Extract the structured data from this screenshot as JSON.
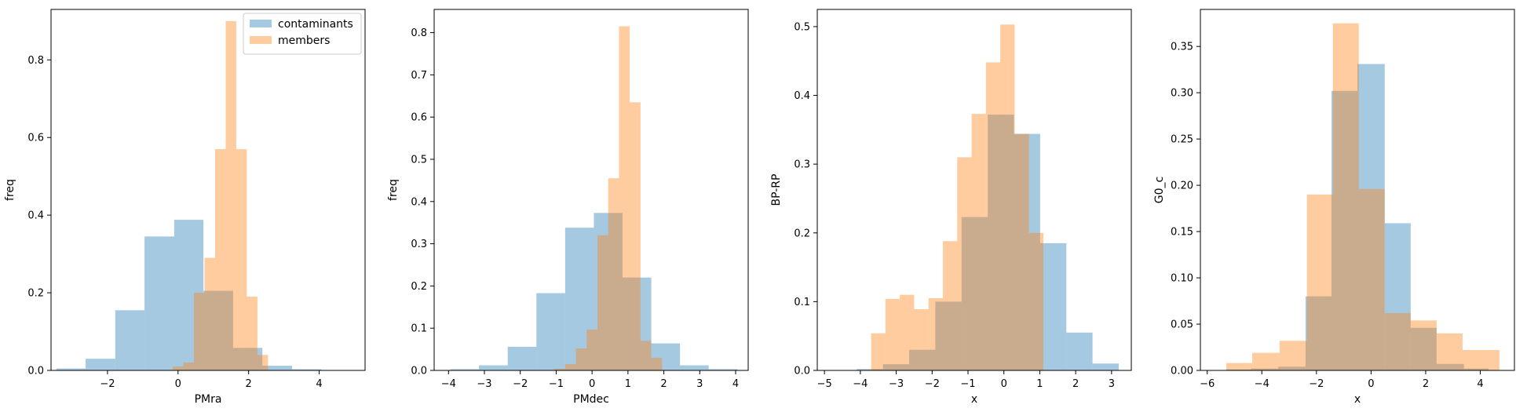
{
  "colors": {
    "contaminants": "#1f77b4",
    "members": "#ff7f0e"
  },
  "chart_data": [
    {
      "type": "histogram",
      "xlabel": "PMra",
      "ylabel": "freq",
      "xlim": [
        -3.6,
        5.3
      ],
      "ylim": [
        0,
        0.93
      ],
      "xticks": [
        -2,
        0,
        2,
        4
      ],
      "yticks": [
        0.0,
        0.2,
        0.4,
        0.6,
        0.8
      ],
      "ytick_format": 1,
      "legend": {
        "placement": "top-right",
        "entries": [
          "contaminants",
          "members"
        ]
      },
      "series": [
        {
          "name": "contaminants",
          "color": "#1f77b4",
          "edges": [
            -3.45,
            -2.62,
            -1.78,
            -0.95,
            -0.11,
            0.72,
            1.56,
            2.39,
            3.23,
            4.06,
            4.9
          ],
          "values": [
            0.005,
            0.03,
            0.155,
            0.345,
            0.388,
            0.205,
            0.058,
            0.012,
            0.003,
            0.001
          ]
        },
        {
          "name": "members",
          "color": "#ff7f0e",
          "edges": [
            -0.15,
            0.15,
            0.45,
            0.75,
            1.05,
            1.35,
            1.65,
            1.95,
            2.25,
            2.55
          ],
          "values": [
            0.01,
            0.02,
            0.2,
            0.29,
            0.57,
            0.9,
            0.57,
            0.19,
            0.04
          ]
        }
      ]
    },
    {
      "type": "histogram",
      "xlabel": "PMdec",
      "ylabel": "freq",
      "xlim": [
        -4.4,
        4.35
      ],
      "ylim": [
        0,
        0.855
      ],
      "xticks": [
        -4,
        -3,
        -2,
        -1,
        0,
        1,
        2,
        3,
        4
      ],
      "yticks": [
        0.0,
        0.1,
        0.2,
        0.3,
        0.4,
        0.5,
        0.6,
        0.7,
        0.8
      ],
      "ytick_format": 1,
      "series": [
        {
          "name": "contaminants",
          "color": "#1f77b4",
          "edges": [
            -3.95,
            -3.15,
            -2.35,
            -1.55,
            -0.75,
            0.05,
            0.85,
            1.65,
            2.45,
            3.25,
            4.05
          ],
          "values": [
            0.003,
            0.012,
            0.056,
            0.183,
            0.338,
            0.373,
            0.22,
            0.064,
            0.012,
            0.003
          ]
        },
        {
          "name": "members",
          "color": "#ff7f0e",
          "edges": [
            -1.05,
            -0.75,
            -0.45,
            -0.15,
            0.15,
            0.45,
            0.75,
            1.05,
            1.35,
            1.65,
            1.95
          ],
          "values": [
            0.004,
            0.015,
            0.052,
            0.097,
            0.32,
            0.455,
            0.815,
            0.635,
            0.07,
            0.03
          ]
        }
      ]
    },
    {
      "type": "histogram",
      "xlabel": "x",
      "ylabel": "BP-RP",
      "xlim": [
        -5.2,
        3.55
      ],
      "ylim": [
        0,
        0.525
      ],
      "xticks": [
        -5,
        -4,
        -3,
        -2,
        -1,
        0,
        1,
        2,
        3
      ],
      "yticks": [
        0.0,
        0.1,
        0.2,
        0.3,
        0.4,
        0.5
      ],
      "ytick_format": 1,
      "series": [
        {
          "name": "contaminants",
          "color": "#1f77b4",
          "edges": [
            -4.1,
            -3.37,
            -2.64,
            -1.91,
            -1.18,
            -0.45,
            0.28,
            1.01,
            1.74,
            2.47,
            3.2
          ],
          "values": [
            0.002,
            0.009,
            0.03,
            0.1,
            0.223,
            0.372,
            0.344,
            0.185,
            0.055,
            0.01
          ]
        },
        {
          "name": "members",
          "color": "#ff7f0e",
          "edges": [
            -3.7,
            -3.3,
            -2.9,
            -2.5,
            -2.1,
            -1.7,
            -1.3,
            -0.9,
            -0.5,
            -0.1,
            0.3,
            0.7,
            1.1
          ],
          "values": [
            0.054,
            0.104,
            0.11,
            0.089,
            0.105,
            0.188,
            0.31,
            0.373,
            0.448,
            0.503,
            0.344,
            0.2
          ]
        }
      ]
    },
    {
      "type": "histogram",
      "xlabel": "x",
      "ylabel": "G0_c",
      "xlim": [
        -6.25,
        5.25
      ],
      "ylim": [
        0,
        0.39
      ],
      "xticks": [
        -6,
        -4,
        -2,
        0,
        2,
        4
      ],
      "yticks": [
        0.0,
        0.05,
        0.1,
        0.15,
        0.2,
        0.25,
        0.3,
        0.35
      ],
      "ytick_format": 2,
      "series": [
        {
          "name": "contaminants",
          "color": "#1f77b4",
          "edges": [
            -5.3,
            -4.4,
            -3.4,
            -2.4,
            -1.45,
            -0.5,
            0.5,
            1.45,
            2.4,
            3.4,
            4.3
          ],
          "values": [
            0.001,
            0.002,
            0.004,
            0.08,
            0.302,
            0.331,
            0.159,
            0.046,
            0.007,
            0.002
          ]
        },
        {
          "name": "members",
          "color": "#ff7f0e",
          "edges": [
            -5.3,
            -4.35,
            -3.35,
            -2.35,
            -1.4,
            -0.45,
            0.5,
            1.45,
            2.4,
            3.35,
            4.3,
            4.7
          ],
          "values": [
            0.008,
            0.019,
            0.032,
            0.19,
            0.375,
            0.196,
            0.062,
            0.054,
            0.04,
            0.022,
            0.022
          ]
        }
      ]
    }
  ]
}
